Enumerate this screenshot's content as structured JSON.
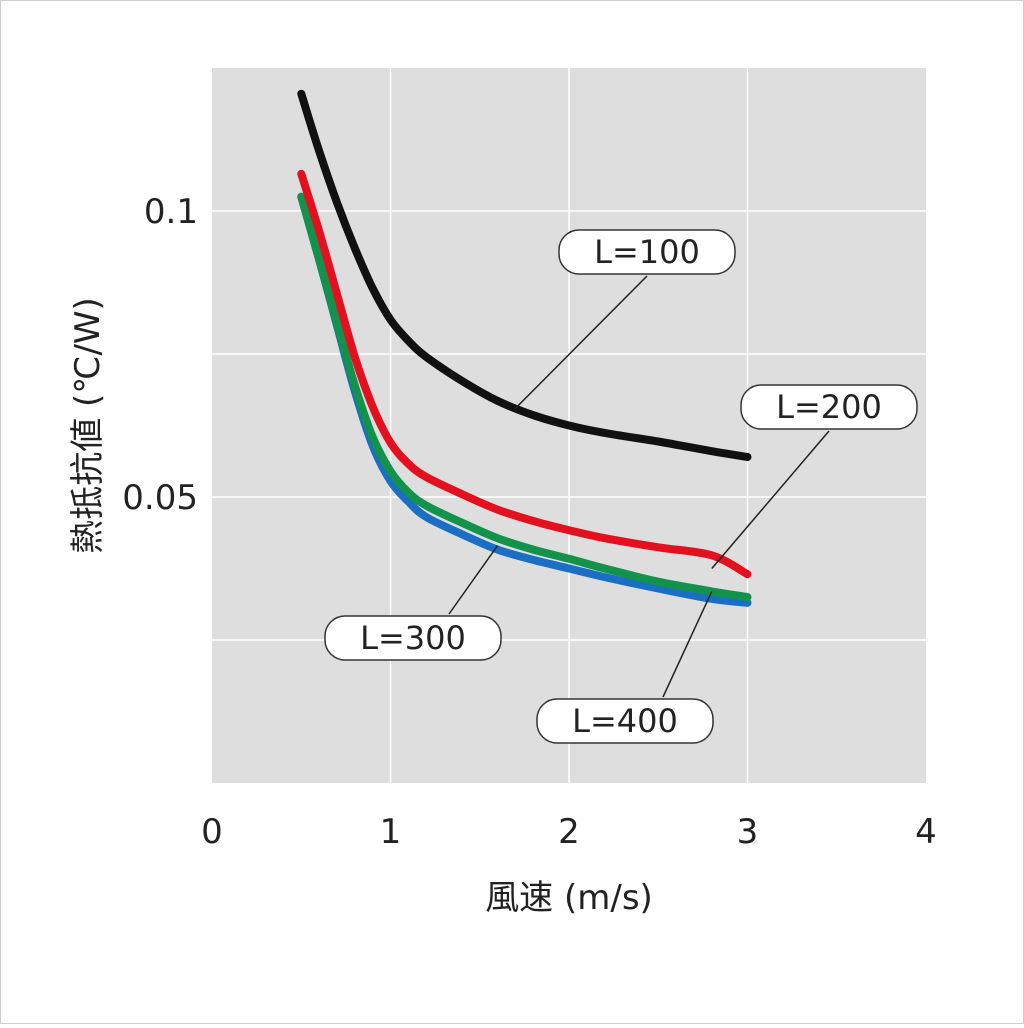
{
  "chart_data": {
    "type": "line",
    "xlabel": "風速 (m/s)",
    "ylabel": "熱抵抗値 (℃/W)",
    "xlim": [
      0,
      4
    ],
    "ylim": [
      0,
      0.125
    ],
    "x_ticks": [
      "0",
      "1",
      "2",
      "3",
      "4"
    ],
    "y_ticks": [
      {
        "value": 0.05,
        "label": "0.05"
      },
      {
        "value": 0.1,
        "label": "0.1"
      }
    ],
    "y_gridlines": [
      0.025,
      0.05,
      0.075,
      0.1
    ],
    "grid": true,
    "background": "#dedede",
    "series": [
      {
        "name": "L=100",
        "color": "#111111",
        "x": [
          0.5,
          0.6,
          0.7,
          0.8,
          0.9,
          1.0,
          1.1,
          1.2,
          1.4,
          1.6,
          1.8,
          2.0,
          2.2,
          2.5,
          2.8,
          3.0
        ],
        "y": [
          0.1205,
          0.1105,
          0.1015,
          0.0935,
          0.0865,
          0.081,
          0.0773,
          0.0745,
          0.0703,
          0.0668,
          0.0643,
          0.0625,
          0.0612,
          0.0597,
          0.058,
          0.057
        ]
      },
      {
        "name": "L=200",
        "color": "#e3101f",
        "x": [
          0.5,
          0.6,
          0.7,
          0.8,
          0.9,
          1.0,
          1.1,
          1.2,
          1.4,
          1.6,
          1.8,
          2.0,
          2.2,
          2.5,
          2.8,
          3.0
        ],
        "y": [
          0.1065,
          0.0965,
          0.0855,
          0.0745,
          0.0658,
          0.0595,
          0.0558,
          0.0535,
          0.0505,
          0.0478,
          0.0458,
          0.0442,
          0.0428,
          0.0412,
          0.0398,
          0.0365
        ]
      },
      {
        "name": "L=300",
        "color": "#12924a",
        "x": [
          0.5,
          0.6,
          0.7,
          0.8,
          0.9,
          1.0,
          1.1,
          1.2,
          1.4,
          1.6,
          1.8,
          2.0,
          2.2,
          2.5,
          2.8,
          3.0
        ],
        "y": [
          0.1025,
          0.0915,
          0.0805,
          0.0695,
          0.0605,
          0.0545,
          0.0508,
          0.0485,
          0.0455,
          0.0428,
          0.0408,
          0.0392,
          0.0375,
          0.0352,
          0.0335,
          0.0325
        ]
      },
      {
        "name": "L=400",
        "color": "#1a6fc4",
        "x": [
          0.5,
          0.6,
          0.7,
          0.8,
          0.9,
          1.0,
          1.1,
          1.2,
          1.4,
          1.6,
          1.8,
          2.0,
          2.2,
          2.5,
          2.8,
          3.0
        ],
        "y": [
          0.1025,
          0.0915,
          0.08,
          0.0685,
          0.059,
          0.0528,
          0.0492,
          0.0465,
          0.0435,
          0.0408,
          0.039,
          0.0375,
          0.036,
          0.034,
          0.0322,
          0.0315
        ]
      }
    ],
    "annotations": [
      {
        "text": "L=100",
        "series": "L=100",
        "point": [
          1.7,
          0.0655
        ]
      },
      {
        "text": "L=200",
        "series": "L=200",
        "point": [
          2.8,
          0.0375
        ]
      },
      {
        "text": "L=300",
        "series": "L=300",
        "point": [
          1.6,
          0.0415
        ]
      },
      {
        "text": "L=400",
        "series": "L=400",
        "point": [
          2.8,
          0.0335
        ]
      }
    ]
  }
}
